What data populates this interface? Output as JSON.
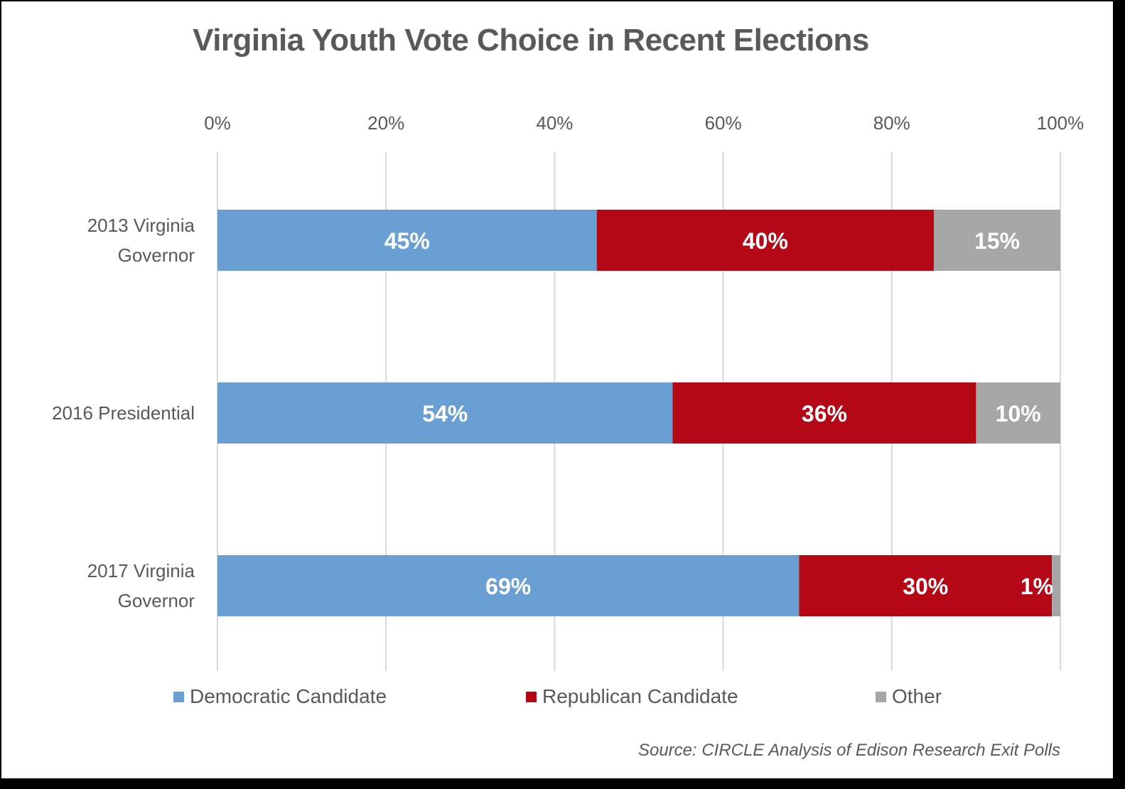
{
  "chart_data": {
    "type": "bar",
    "orientation": "horizontal",
    "stacked": "percent",
    "title": "Virginia Youth Vote Choice in Recent Elections",
    "categories": [
      "2013 Virginia Governor",
      "2016 Presidential",
      "2017 Virginia Governor"
    ],
    "category_lines": [
      [
        "2013 Virginia",
        "Governor"
      ],
      [
        "2016 Presidential"
      ],
      [
        "2017 Virginia",
        "Governor"
      ]
    ],
    "series": [
      {
        "name": "Democratic Candidate",
        "color": "#6a9fd4",
        "values": [
          45,
          54,
          69
        ],
        "labels": [
          "45%",
          "54%",
          "69%"
        ]
      },
      {
        "name": "Republican Candidate",
        "color": "#b50816",
        "values": [
          40,
          36,
          30
        ],
        "labels": [
          "40%",
          "36%",
          "30%"
        ]
      },
      {
        "name": "Other",
        "color": "#a6a6a6",
        "values": [
          15,
          10,
          1
        ],
        "labels": [
          "15%",
          "10%",
          "1%"
        ]
      }
    ],
    "xlim": [
      0,
      100
    ],
    "xticks": [
      0,
      20,
      40,
      60,
      80,
      100
    ],
    "xtick_labels": [
      "0%",
      "20%",
      "40%",
      "60%",
      "80%",
      "100%"
    ],
    "xaxis_position": "top",
    "grid": true,
    "legend": "bottom",
    "xlabel": "",
    "ylabel": ""
  },
  "source_note": "Source: CIRCLE Analysis of Edison Research Exit Polls"
}
